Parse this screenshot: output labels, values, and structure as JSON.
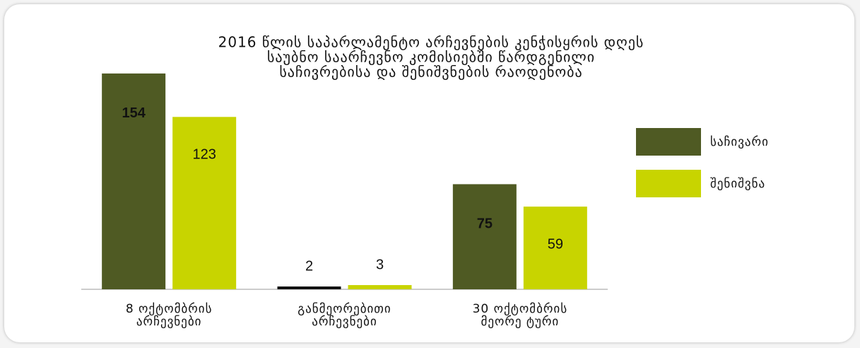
{
  "chart_data": {
    "type": "bar",
    "title": [
      "2016 წლის საპარლამენტო არჩევნების კენჭისყრის დღეს",
      "საუბნო საარჩევნო კომისიებში წარდგენილი",
      "საჩივრებისა და შენიშვნების რაოდენობა"
    ],
    "categories": [
      [
        "8 ოქტომბრის",
        "არჩევნები"
      ],
      [
        "განმეორებითი",
        "არჩევნები"
      ],
      [
        "30 ოქტომბრის",
        "მეორე ტური"
      ]
    ],
    "series": [
      {
        "name": "საჩივარი",
        "color": "#4f5a23",
        "colors": [
          "#4f5a23",
          "#111111",
          "#4f5a23"
        ],
        "values": [
          154,
          2,
          75
        ]
      },
      {
        "name": "შენიშვნა",
        "color": "#c8d400",
        "values": [
          123,
          3,
          59
        ]
      }
    ],
    "ylim": [
      0,
      160
    ],
    "legend": "right"
  }
}
